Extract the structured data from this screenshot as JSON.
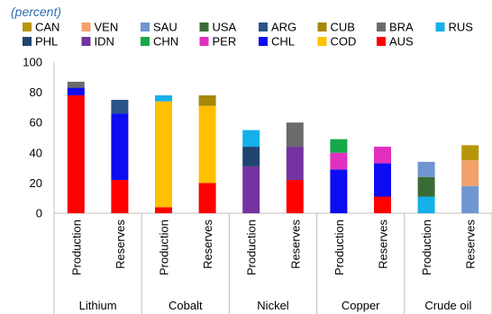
{
  "chart_data": {
    "type": "bar",
    "stacked": true,
    "unit_label": "(percent)",
    "ylim": [
      0,
      100
    ],
    "yticks": [
      0,
      20,
      40,
      60,
      80,
      100
    ],
    "grid": false,
    "legend_position": "top",
    "legend": [
      {
        "key": "CAN",
        "color": "#b8960c"
      },
      {
        "key": "VEN",
        "color": "#f4a06a"
      },
      {
        "key": "SAU",
        "color": "#6f96d1"
      },
      {
        "key": "USA",
        "color": "#3b6b35"
      },
      {
        "key": "ARG",
        "color": "#2b5487"
      },
      {
        "key": "CUB",
        "color": "#a88709"
      },
      {
        "key": "BRA",
        "color": "#6b6b6b"
      },
      {
        "key": "RUS",
        "color": "#14b0e8"
      },
      {
        "key": "PHL",
        "color": "#1f4470"
      },
      {
        "key": "IDN",
        "color": "#7433a0"
      },
      {
        "key": "CHN",
        "color": "#17a84a"
      },
      {
        "key": "PER",
        "color": "#e12fc0"
      },
      {
        "key": "CHL",
        "color": "#0c0cf0"
      },
      {
        "key": "COD",
        "color": "#ffc000"
      },
      {
        "key": "AUS",
        "color": "#ff0000"
      }
    ],
    "groups": [
      "Lithium",
      "Cobalt",
      "Nickel",
      "Copper",
      "Crude oil"
    ],
    "bars": [
      {
        "group": "Lithium",
        "label": "Production",
        "segments": [
          {
            "key": "AUS",
            "value": 78
          },
          {
            "key": "CHL",
            "value": 5
          },
          {
            "key": "BRA",
            "value": 4
          }
        ]
      },
      {
        "group": "Lithium",
        "label": "Reserves",
        "segments": [
          {
            "key": "AUS",
            "value": 22
          },
          {
            "key": "CHL",
            "value": 44
          },
          {
            "key": "ARG",
            "value": 9
          }
        ]
      },
      {
        "group": "Cobalt",
        "label": "Production",
        "segments": [
          {
            "key": "AUS",
            "value": 4
          },
          {
            "key": "COD",
            "value": 70
          },
          {
            "key": "RUS",
            "value": 4
          }
        ]
      },
      {
        "group": "Cobalt",
        "label": "Reserves",
        "segments": [
          {
            "key": "AUS",
            "value": 20
          },
          {
            "key": "COD",
            "value": 51
          },
          {
            "key": "CUB",
            "value": 7
          }
        ]
      },
      {
        "group": "Nickel",
        "label": "Production",
        "segments": [
          {
            "key": "IDN",
            "value": 31
          },
          {
            "key": "PHL",
            "value": 13
          },
          {
            "key": "RUS",
            "value": 11
          }
        ]
      },
      {
        "group": "Nickel",
        "label": "Reserves",
        "segments": [
          {
            "key": "AUS",
            "value": 22
          },
          {
            "key": "IDN",
            "value": 22
          },
          {
            "key": "BRA",
            "value": 16
          }
        ]
      },
      {
        "group": "Copper",
        "label": "Production",
        "segments": [
          {
            "key": "CHL",
            "value": 29
          },
          {
            "key": "PER",
            "value": 11
          },
          {
            "key": "CHN",
            "value": 9
          }
        ]
      },
      {
        "group": "Copper",
        "label": "Reserves",
        "segments": [
          {
            "key": "AUS",
            "value": 11
          },
          {
            "key": "CHL",
            "value": 22
          },
          {
            "key": "PER",
            "value": 11
          }
        ]
      },
      {
        "group": "Crude oil",
        "label": "Production",
        "segments": [
          {
            "key": "RUS",
            "value": 11
          },
          {
            "key": "USA",
            "value": 13
          },
          {
            "key": "SAU",
            "value": 10
          }
        ]
      },
      {
        "group": "Crude oil",
        "label": "Reserves",
        "segments": [
          {
            "key": "SAU",
            "value": 18
          },
          {
            "key": "VEN",
            "value": 17
          },
          {
            "key": "CAN",
            "value": 10
          }
        ]
      }
    ]
  }
}
